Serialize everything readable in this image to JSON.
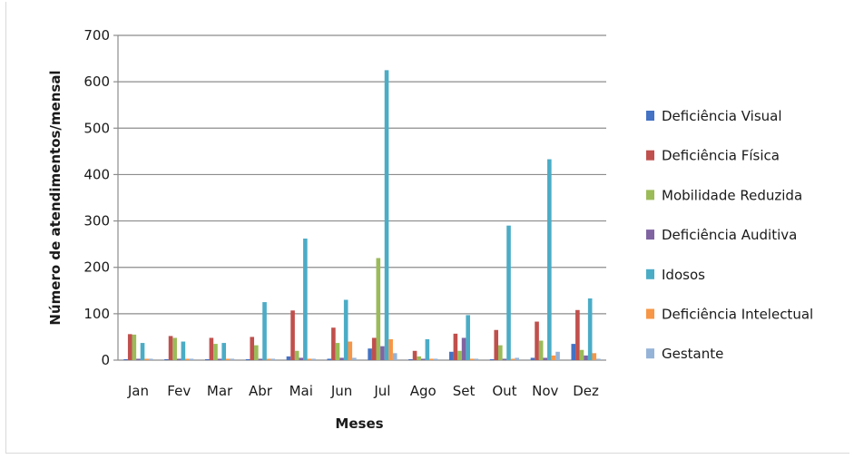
{
  "chart_data": {
    "type": "bar",
    "title": "",
    "xlabel": "Meses",
    "ylabel": "Número de atendimentos/mensal",
    "ylim": [
      0,
      700
    ],
    "yticks": [
      0,
      100,
      200,
      300,
      400,
      500,
      600,
      700
    ],
    "grid": true,
    "legend_position": "right",
    "categories": [
      "Jan",
      "Fev",
      "Mar",
      "Abr",
      "Mai",
      "Jun",
      "Jul",
      "Ago",
      "Set",
      "Out",
      "Nov",
      "Dez"
    ],
    "series": [
      {
        "name": "Deficiência Visual",
        "color": "#4472c4",
        "values": [
          2,
          2,
          2,
          2,
          8,
          3,
          25,
          2,
          18,
          2,
          5,
          35
        ]
      },
      {
        "name": "Deficiência Física",
        "color": "#c0504d",
        "values": [
          56,
          52,
          48,
          50,
          107,
          70,
          48,
          20,
          57,
          65,
          83,
          108
        ]
      },
      {
        "name": "Mobilidade Reduzida",
        "color": "#9bbb59",
        "values": [
          55,
          48,
          35,
          32,
          20,
          37,
          220,
          8,
          20,
          32,
          42,
          22
        ]
      },
      {
        "name": "Deficiência Auditiva",
        "color": "#8064a2",
        "values": [
          3,
          3,
          3,
          3,
          5,
          5,
          30,
          3,
          48,
          3,
          5,
          10
        ]
      },
      {
        "name": "Idosos",
        "color": "#4bacc6",
        "values": [
          37,
          40,
          37,
          125,
          262,
          130,
          625,
          45,
          97,
          290,
          433,
          133
        ]
      },
      {
        "name": "Deficiência Intelectual",
        "color": "#f79646",
        "values": [
          3,
          3,
          3,
          3,
          3,
          40,
          45,
          3,
          3,
          3,
          10,
          15
        ]
      },
      {
        "name": "Gestante",
        "color": "#95b3d7",
        "values": [
          3,
          3,
          3,
          3,
          3,
          5,
          15,
          3,
          3,
          5,
          18,
          3
        ]
      }
    ]
  }
}
